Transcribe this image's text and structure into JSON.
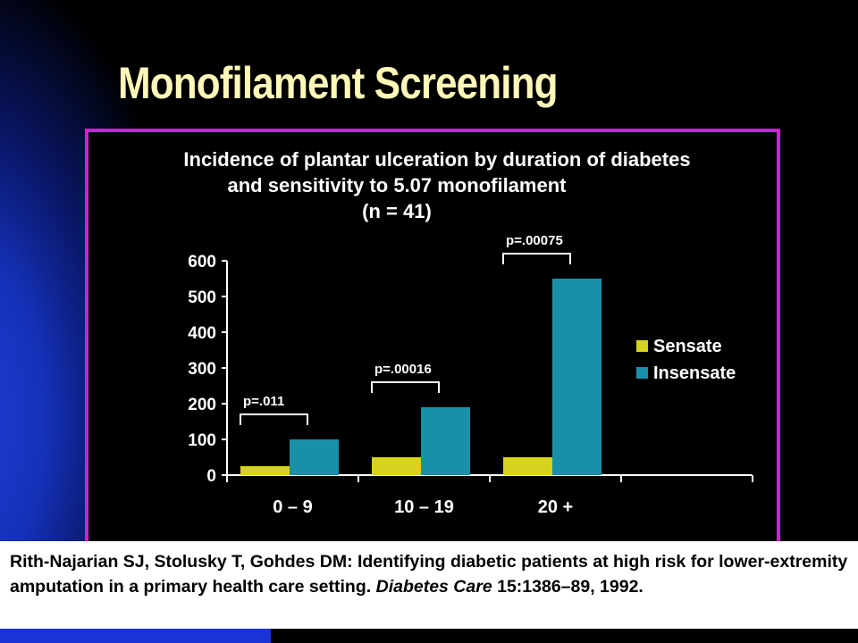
{
  "slide": {
    "title": "Monofilament Screening"
  },
  "citation": {
    "text_before": "Rith-Najarian SJ, Stolusky T, Gohdes DM: Identifying diabetic patients at high risk for lower-extremity amputation in a primary health care setting. ",
    "journal": "Diabetes Care",
    "text_after": " 15:1386–89, 1992."
  },
  "colors": {
    "title": "#fdf7b8",
    "frame": "#d321d0",
    "sensate": "#d6d21e",
    "insensate": "#1a90a8",
    "text": "#ffffff"
  },
  "chart_data": {
    "type": "bar",
    "title": [
      "Incidence of plantar ulceration by duration of diabetes",
      "and sensitivity to 5.07 monofilament",
      "(n = 41)"
    ],
    "categories": [
      "0 – 9",
      "10 – 19",
      "20 +"
    ],
    "series": [
      {
        "name": "Sensate",
        "values": [
          25,
          50,
          50
        ]
      },
      {
        "name": "Insensate",
        "values": [
          100,
          190,
          550
        ]
      }
    ],
    "y_ticks": [
      0,
      100,
      200,
      300,
      400,
      500,
      600
    ],
    "ylim": [
      0,
      600
    ],
    "annotations": [
      "p=.011",
      "p=.00016",
      "p=.00075"
    ],
    "legend_position": "right",
    "grid": false
  }
}
